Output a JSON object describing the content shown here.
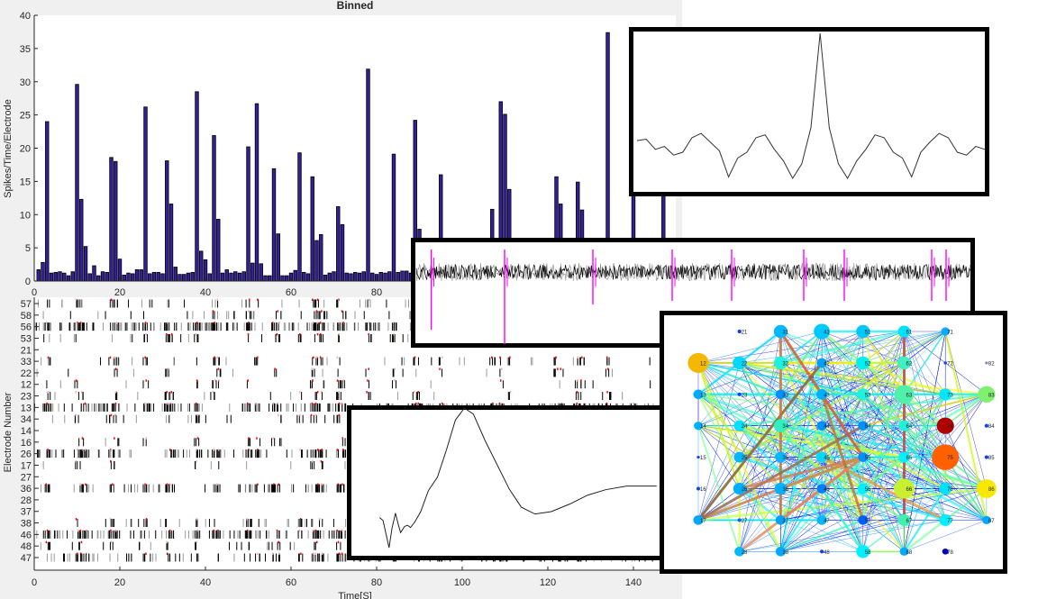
{
  "figure": {
    "title": "Binned",
    "background": "#f0f0f0"
  },
  "chart_data": [
    {
      "type": "bar",
      "title": "Binned",
      "xlabel": "",
      "ylabel": "Spikes/Time/Electrode",
      "xlim": [
        0,
        150
      ],
      "ylim": [
        0,
        40
      ],
      "xticks": [
        0,
        20,
        40,
        60,
        80,
        100,
        120,
        140
      ],
      "yticks": [
        0,
        5,
        10,
        15,
        20,
        25,
        30,
        35,
        40
      ],
      "bar_color": "#33209c",
      "x": [
        1,
        2,
        3,
        4,
        5,
        6,
        7,
        8,
        9,
        10,
        11,
        12,
        13,
        14,
        15,
        16,
        17,
        18,
        19,
        20,
        21,
        22,
        23,
        24,
        25,
        26,
        27,
        28,
        29,
        30,
        31,
        32,
        33,
        34,
        35,
        36,
        37,
        38,
        39,
        40,
        41,
        42,
        43,
        44,
        45,
        46,
        47,
        48,
        49,
        50,
        51,
        52,
        53,
        54,
        55,
        56,
        57,
        58,
        59,
        60,
        61,
        62,
        63,
        64,
        65,
        66,
        67,
        68,
        69,
        70,
        71,
        72,
        73,
        74,
        75,
        76,
        77,
        78,
        79,
        80,
        81,
        82,
        83,
        84,
        85,
        86,
        87,
        88,
        89,
        90,
        91,
        92,
        93,
        94,
        95,
        96,
        97,
        98,
        99,
        100,
        101,
        102,
        103,
        104,
        105,
        106,
        107,
        108,
        109,
        110,
        111,
        112,
        113,
        114,
        115,
        116,
        117,
        118,
        119,
        120,
        121,
        122,
        123,
        124,
        125,
        126,
        127,
        128,
        129,
        130,
        131,
        132,
        133,
        134,
        135,
        136,
        137,
        138,
        139,
        140,
        141,
        142,
        143,
        144,
        145,
        146,
        147,
        148,
        149
      ],
      "values": [
        1.7,
        2.8,
        24,
        1.2,
        1.3,
        1.4,
        1.2,
        0.8,
        1.4,
        29.6,
        12.3,
        5.2,
        1.1,
        2.3,
        0.8,
        1.4,
        1.3,
        18.6,
        18,
        3.3,
        0.9,
        1.2,
        1.1,
        1.7,
        1.7,
        26.2,
        1.1,
        1.3,
        1.3,
        1.1,
        18.1,
        11.6,
        2.1,
        1,
        1,
        1.2,
        1.3,
        28.5,
        4.5,
        3.2,
        1.1,
        21.9,
        9.3,
        1.2,
        1.7,
        1.2,
        1.4,
        1.2,
        1.4,
        20.2,
        2.7,
        26.7,
        2.6,
        0.8,
        0.8,
        16.9,
        7.1,
        0.8,
        0.8,
        1.2,
        1.6,
        19.3,
        1.3,
        1.1,
        15.7,
        6.1,
        7,
        0.9,
        1.2,
        1.4,
        11.2,
        8.5,
        1.2,
        1.1,
        1.3,
        1.2,
        1.4,
        31.9,
        1.2,
        1,
        1.3,
        1.2,
        1.4,
        19.1,
        1.3,
        1.5,
        1.5,
        1.2,
        24.2,
        7.8,
        1.3,
        1.2,
        1.1,
        1.3,
        16,
        1.2,
        1.2,
        1.3,
        1.1,
        1.2,
        1.2,
        1.3,
        1.2,
        1.1,
        1.2,
        1.3,
        10.8,
        1.2,
        27,
        25.1,
        13.8,
        1.2,
        1.2,
        1.3,
        1.1,
        1.2,
        1.2,
        1.3,
        1.2,
        1.2,
        1.1,
        15.7,
        11.6,
        1.2,
        1.2,
        1.3,
        14.9,
        10.7,
        1.2,
        1.2,
        1.1,
        1.3,
        1.2,
        37.4,
        1.2,
        1.2,
        1.3,
        1.2,
        1.1,
        17.8,
        1.2,
        1.3,
        1.2,
        1.2,
        1.1,
        1.2,
        13.6,
        1.2,
        1.2
      ]
    },
    {
      "type": "scatter",
      "title": "",
      "xlabel": "Time[S]",
      "ylabel": "Electrode Number",
      "xlim": [
        0,
        150
      ],
      "xticks": [
        0,
        20,
        40,
        60,
        80,
        100,
        120,
        140
      ],
      "electrodes": [
        "57",
        "58",
        "56",
        "53",
        "21",
        "33",
        "22",
        "12",
        "23",
        "13",
        "34",
        "14",
        "16",
        "26",
        "17",
        "27",
        "36",
        "28",
        "37",
        "38",
        "46",
        "48",
        "47"
      ]
    }
  ],
  "insets": {
    "autocorrelation": {
      "line_color": "#333333",
      "values": [
        26,
        27,
        20,
        22,
        16,
        18,
        28,
        31,
        25,
        19,
        1,
        14,
        18,
        28,
        30,
        20,
        12,
        0,
        10,
        35,
        100,
        35,
        10,
        0,
        12,
        20,
        30,
        28,
        18,
        14,
        1,
        18,
        25,
        31,
        28,
        18,
        16,
        22,
        20
      ]
    },
    "raw_trace": {
      "trace_color": "#000000",
      "spike_color": "#ff00ff"
    },
    "waveform": {
      "points": [
        [
          80.7,
          21.5
        ],
        [
          81.5,
          19.4
        ],
        [
          82.2,
          9.7
        ],
        [
          82.9,
          0
        ],
        [
          83.6,
          14
        ],
        [
          84.4,
          24.7
        ],
        [
          85.1,
          16.1
        ],
        [
          85.6,
          10.8
        ],
        [
          86.5,
          15.1
        ],
        [
          87.2,
          16.1
        ],
        [
          87.9,
          14.4
        ],
        [
          88.9,
          18.3
        ],
        [
          90.3,
          25.8
        ],
        [
          92.1,
          40.9
        ],
        [
          94.2,
          50.5
        ],
        [
          96.3,
          69.9
        ],
        [
          98.4,
          91.4
        ],
        [
          100.5,
          100
        ],
        [
          102.6,
          95.7
        ],
        [
          105.4,
          76.3
        ],
        [
          108.2,
          59.1
        ],
        [
          111,
          41.9
        ],
        [
          113.8,
          29
        ],
        [
          117,
          24.1
        ],
        [
          120.8,
          25.8
        ],
        [
          125.1,
          31.2
        ],
        [
          129.3,
          37.6
        ],
        [
          133.5,
          41.5
        ],
        [
          138.4,
          44.1
        ],
        [
          145.4,
          44.1
        ]
      ]
    },
    "network": {
      "nodes": [
        {
          "label": "21",
          "weight": 0.05,
          "color": "#0a3cff"
        },
        {
          "label": "31",
          "weight": 0.45,
          "color": "#00b8ff"
        },
        {
          "label": "41",
          "weight": 0.55,
          "color": "#00c8ff"
        },
        {
          "label": "51",
          "weight": 0.45,
          "color": "#00c8ff"
        },
        {
          "label": "61",
          "weight": 0.4,
          "color": "#00e0ff"
        },
        {
          "label": "71",
          "weight": 0.25,
          "color": "#10a8ff"
        },
        {
          "label": "12",
          "weight": 0.75,
          "color": "#f5b800"
        },
        {
          "label": "22",
          "weight": 0.45,
          "color": "#00d8ff"
        },
        {
          "label": "32",
          "weight": 0.45,
          "color": "#20f0e0"
        },
        {
          "label": "42",
          "weight": 0.3,
          "color": "#00a0ff"
        },
        {
          "label": "52",
          "weight": 0.45,
          "color": "#00f0f0"
        },
        {
          "label": "62",
          "weight": 0.45,
          "color": "#40f0c0"
        },
        {
          "label": "72",
          "weight": 0.02,
          "color": "#1040ff"
        },
        {
          "label": "82",
          "weight": 0.01,
          "color": "#8080c0"
        },
        {
          "label": "13",
          "weight": 0.3,
          "color": "#00a8ff"
        },
        {
          "label": "23",
          "weight": 0.05,
          "color": "#1040ff"
        },
        {
          "label": "33",
          "weight": 0.3,
          "color": "#0090ff"
        },
        {
          "label": "43",
          "weight": 0.35,
          "color": "#00b0ff"
        },
        {
          "label": "53",
          "weight": 0.4,
          "color": "#20f0e0"
        },
        {
          "label": "63",
          "weight": 0.7,
          "color": "#50f0a8"
        },
        {
          "label": "73",
          "weight": 0.4,
          "color": "#00e8ff"
        },
        {
          "label": "83",
          "weight": 0.6,
          "color": "#80f070"
        },
        {
          "label": "14",
          "weight": 0.25,
          "color": "#00b0ff"
        },
        {
          "label": "24",
          "weight": 0.35,
          "color": "#00e0ff"
        },
        {
          "label": "34",
          "weight": 0.45,
          "color": "#30f0c0"
        },
        {
          "label": "44",
          "weight": 0.3,
          "color": "#0090ff"
        },
        {
          "label": "54",
          "weight": 0.3,
          "color": "#0090ff"
        },
        {
          "label": "64",
          "weight": 0.35,
          "color": "#20f0e0"
        },
        {
          "label": "74",
          "weight": 0.6,
          "color": "#b00000"
        },
        {
          "label": "84",
          "weight": 0.05,
          "color": "#1040ff"
        },
        {
          "label": "15",
          "weight": 0.01,
          "color": "#1040ff"
        },
        {
          "label": "25",
          "weight": 0.35,
          "color": "#00b8ff"
        },
        {
          "label": "35",
          "weight": 0.35,
          "color": "#00b8ff"
        },
        {
          "label": "45",
          "weight": 0.35,
          "color": "#00d8ff"
        },
        {
          "label": "55",
          "weight": 0.3,
          "color": "#0090ff"
        },
        {
          "label": "65",
          "weight": 0.35,
          "color": "#00f0ff"
        },
        {
          "label": "75",
          "weight": 1.0,
          "color": "#ff6000"
        },
        {
          "label": "85",
          "weight": 0.05,
          "color": "#1040ff"
        },
        {
          "label": "16",
          "weight": 0.04,
          "color": "#1040ff"
        },
        {
          "label": "26",
          "weight": 0.4,
          "color": "#00b0ff"
        },
        {
          "label": "36",
          "weight": 0.4,
          "color": "#00b0ff"
        },
        {
          "label": "46",
          "weight": 0.3,
          "color": "#0080ff"
        },
        {
          "label": "56",
          "weight": 0.35,
          "color": "#00f0ff"
        },
        {
          "label": "66",
          "weight": 0.75,
          "color": "#c8f030"
        },
        {
          "label": "76",
          "weight": 0.4,
          "color": "#00e0ff"
        },
        {
          "label": "86",
          "weight": 0.7,
          "color": "#f8e800"
        },
        {
          "label": "17",
          "weight": 0.3,
          "color": "#00a8ff"
        },
        {
          "label": "27",
          "weight": 0.05,
          "color": "#0060ff"
        },
        {
          "label": "37",
          "weight": 0.3,
          "color": "#00a0ff"
        },
        {
          "label": "47",
          "weight": 0.3,
          "color": "#00b8ff"
        },
        {
          "label": "57",
          "weight": 0.3,
          "color": "#0060ff"
        },
        {
          "label": "67",
          "weight": 0.4,
          "color": "#40f0b0"
        },
        {
          "label": "77",
          "weight": 0.4,
          "color": "#00f0ff"
        },
        {
          "label": "87",
          "weight": 0.25,
          "color": "#00a8ff"
        },
        {
          "label": "28",
          "weight": 0.3,
          "color": "#00b8ff"
        },
        {
          "label": "38",
          "weight": 0.3,
          "color": "#00a8ff"
        },
        {
          "label": "48",
          "weight": 0.05,
          "color": "#1040ff"
        },
        {
          "label": "58",
          "weight": 0.45,
          "color": "#00f0ff"
        },
        {
          "label": "68",
          "weight": 0.25,
          "color": "#00a8ff"
        },
        {
          "label": "78",
          "weight": 0.15,
          "color": "#0000c0"
        }
      ]
    }
  }
}
